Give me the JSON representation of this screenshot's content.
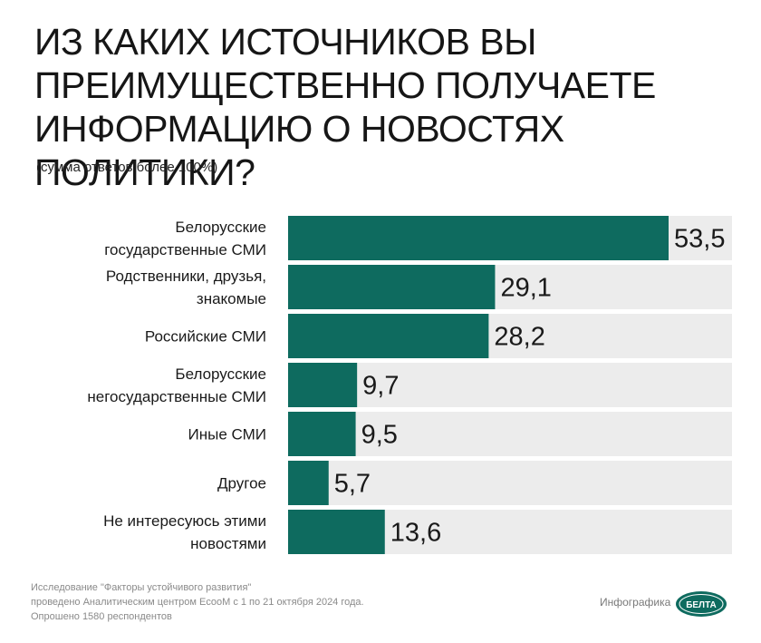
{
  "header": {
    "title_lines": [
      "ИЗ КАКИХ ИСТОЧНИКОВ ВЫ",
      "ПРЕИМУЩЕСТВЕННО ПОЛУЧАЕТЕ",
      "ИНФОРМАЦИЮ О НОВОСТЯХ ПОЛИТИКИ?"
    ],
    "subtitle": "(сумма ответов более 100%)"
  },
  "chart_data": {
    "type": "bar",
    "orientation": "horizontal",
    "categories": [
      [
        "Белорусские",
        "государственные СМИ"
      ],
      [
        "Родственники, друзья,",
        "знакомые"
      ],
      [
        "Российские СМИ"
      ],
      [
        "Белорусские",
        "негосударственные СМИ"
      ],
      [
        "Иные СМИ"
      ],
      [
        "Другое"
      ],
      [
        "Не интересуюсь этими",
        "новостями"
      ]
    ],
    "values": [
      53.5,
      29.1,
      28.2,
      9.7,
      9.5,
      5.7,
      13.6
    ],
    "value_labels": [
      "53,5",
      "29,1",
      "28,2",
      "9,7",
      "9,5",
      "5,7",
      "13,6"
    ],
    "xlim": [
      0,
      53.5
    ],
    "bar_color": "#0e6b5f",
    "track_color": "#ececec",
    "grid": false
  },
  "footer": {
    "lines": [
      "Исследование \"Факторы устойчивого развития\"",
      "проведено Аналитическим центром EcooM с 1 по 21 октября 2024 года.",
      "Опрошено 1580 респондентов"
    ],
    "credit": "Инфографика",
    "logo_text": "БЕЛТА"
  }
}
